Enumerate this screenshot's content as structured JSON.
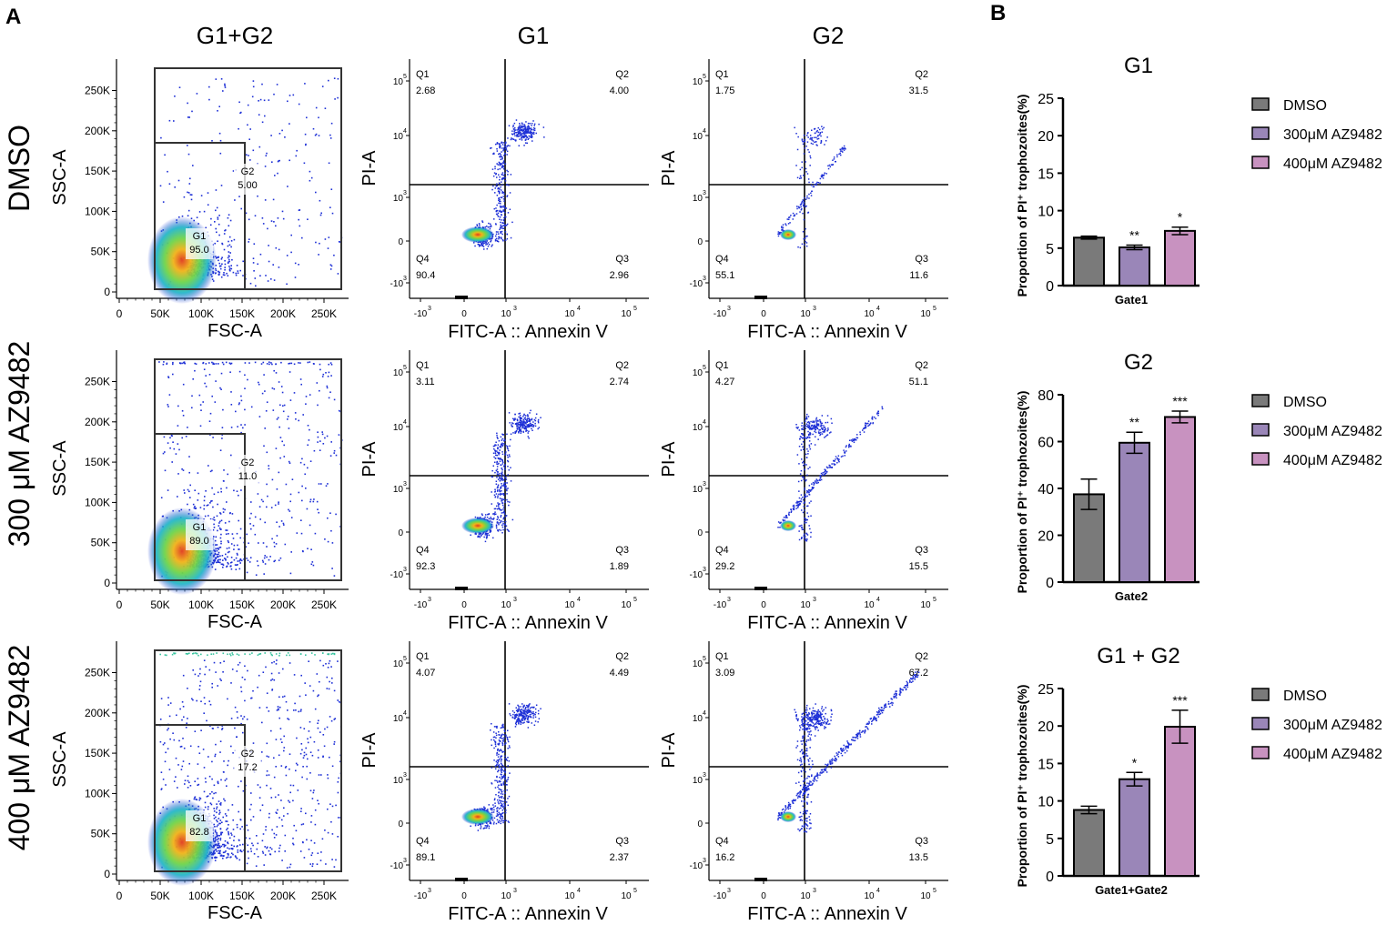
{
  "panel_labels": {
    "a": "A",
    "b": "B"
  },
  "column_titles": [
    "G1+G2",
    "G1",
    "G2"
  ],
  "row_labels": [
    "DMSO",
    "300 μM AZ9482",
    "400 μM AZ9482"
  ],
  "scatter_axes": {
    "fsc_xlabel": "FSC-A",
    "ssc_ylabel": "SSC-A",
    "fsc_ticks": [
      "0",
      "50K",
      "100K",
      "150K",
      "200K",
      "250K"
    ],
    "ssc_ticks": [
      "0",
      "50K",
      "100K",
      "150K",
      "200K",
      "250K"
    ],
    "annexin_xlabel": "FITC-A :: Annexin V",
    "pi_ylabel": "PI-A"
  },
  "colors": {
    "dmso": "#7a7a7a",
    "az300": "#9a86b8",
    "az400": "#c892c0",
    "dots": "#1d2fd6"
  },
  "chart_data": [
    {
      "type": "scatter",
      "subtype": "flow-cytometry-gating",
      "title": "G1+G2",
      "row": "DMSO",
      "xlabel": "FSC-A",
      "ylabel": "SSC-A",
      "gates": [
        {
          "name": "G1",
          "value": "95.0"
        },
        {
          "name": "G2",
          "value": "5.00"
        }
      ]
    },
    {
      "type": "scatter",
      "subtype": "flow-cytometry-quadrant",
      "title": "G1",
      "row": "DMSO",
      "xlabel": "FITC-A :: Annexin V",
      "ylabel": "PI-A",
      "quadrants": {
        "Q1": "2.68",
        "Q2": "4.00",
        "Q3": "2.96",
        "Q4": "90.4"
      }
    },
    {
      "type": "scatter",
      "subtype": "flow-cytometry-quadrant",
      "title": "G2",
      "row": "DMSO",
      "xlabel": "FITC-A :: Annexin V",
      "ylabel": "PI-A",
      "quadrants": {
        "Q1": "1.75",
        "Q2": "31.5",
        "Q3": "11.6",
        "Q4": "55.1"
      }
    },
    {
      "type": "scatter",
      "subtype": "flow-cytometry-gating",
      "title": "G1+G2",
      "row": "300 μM AZ9482",
      "xlabel": "FSC-A",
      "ylabel": "SSC-A",
      "gates": [
        {
          "name": "G1",
          "value": "89.0"
        },
        {
          "name": "G2",
          "value": "11.0"
        }
      ]
    },
    {
      "type": "scatter",
      "subtype": "flow-cytometry-quadrant",
      "title": "G1",
      "row": "300 μM AZ9482",
      "xlabel": "FITC-A :: Annexin V",
      "ylabel": "PI-A",
      "quadrants": {
        "Q1": "3.11",
        "Q2": "2.74",
        "Q3": "1.89",
        "Q4": "92.3"
      }
    },
    {
      "type": "scatter",
      "subtype": "flow-cytometry-quadrant",
      "title": "G2",
      "row": "300 μM AZ9482",
      "xlabel": "FITC-A :: Annexin V",
      "ylabel": "PI-A",
      "quadrants": {
        "Q1": "4.27",
        "Q2": "51.1",
        "Q3": "15.5",
        "Q4": "29.2"
      }
    },
    {
      "type": "scatter",
      "subtype": "flow-cytometry-gating",
      "title": "G1+G2",
      "row": "400 μM AZ9482",
      "xlabel": "FSC-A",
      "ylabel": "SSC-A",
      "gates": [
        {
          "name": "G1",
          "value": "82.8"
        },
        {
          "name": "G2",
          "value": "17.2"
        }
      ]
    },
    {
      "type": "scatter",
      "subtype": "flow-cytometry-quadrant",
      "title": "G1",
      "row": "400 μM AZ9482",
      "xlabel": "FITC-A :: Annexin V",
      "ylabel": "PI-A",
      "quadrants": {
        "Q1": "4.07",
        "Q2": "4.49",
        "Q3": "2.37",
        "Q4": "89.1"
      }
    },
    {
      "type": "scatter",
      "subtype": "flow-cytometry-quadrant",
      "title": "G2",
      "row": "400 μM AZ9482",
      "xlabel": "FITC-A :: Annexin V",
      "ylabel": "PI-A",
      "quadrants": {
        "Q1": "3.09",
        "Q2": "67.2",
        "Q3": "13.5",
        "Q4": "16.2"
      }
    },
    {
      "type": "bar",
      "title": "G1",
      "xlabel": "Gate1",
      "ylabel": "Proportion of PI⁺ trophozoites(%)",
      "ylim": [
        0,
        25
      ],
      "yticks": [
        "0",
        "5",
        "10",
        "15",
        "20",
        "25"
      ],
      "categories": [
        "DMSO",
        "300μM AZ9482",
        "400μM AZ9482"
      ],
      "values": [
        6.4,
        5.1,
        7.3
      ],
      "errors": [
        0.2,
        0.3,
        0.5
      ],
      "significance": [
        "",
        "**",
        "*"
      ]
    },
    {
      "type": "bar",
      "title": "G2",
      "xlabel": "Gate2",
      "ylabel": "Proportion of PI⁺ trophozoites(%)",
      "ylim": [
        0,
        80
      ],
      "yticks": [
        "0",
        "20",
        "40",
        "60",
        "80"
      ],
      "categories": [
        "DMSO",
        "300μM AZ9482",
        "400μM AZ9482"
      ],
      "values": [
        37.5,
        59.5,
        70.5
      ],
      "errors": [
        6.5,
        4.5,
        2.5
      ],
      "significance": [
        "",
        "**",
        "***"
      ]
    },
    {
      "type": "bar",
      "title": "G1 + G2",
      "xlabel": "Gate1+Gate2",
      "ylabel": "Proportion of PI⁺ trophozoites(%)",
      "ylim": [
        0,
        25
      ],
      "yticks": [
        "0",
        "5",
        "10",
        "15",
        "20",
        "25"
      ],
      "categories": [
        "DMSO",
        "300μM AZ9482",
        "400μM AZ9482"
      ],
      "values": [
        8.8,
        12.9,
        19.9
      ],
      "errors": [
        0.5,
        0.9,
        2.2
      ],
      "significance": [
        "",
        "*",
        "***"
      ]
    }
  ]
}
